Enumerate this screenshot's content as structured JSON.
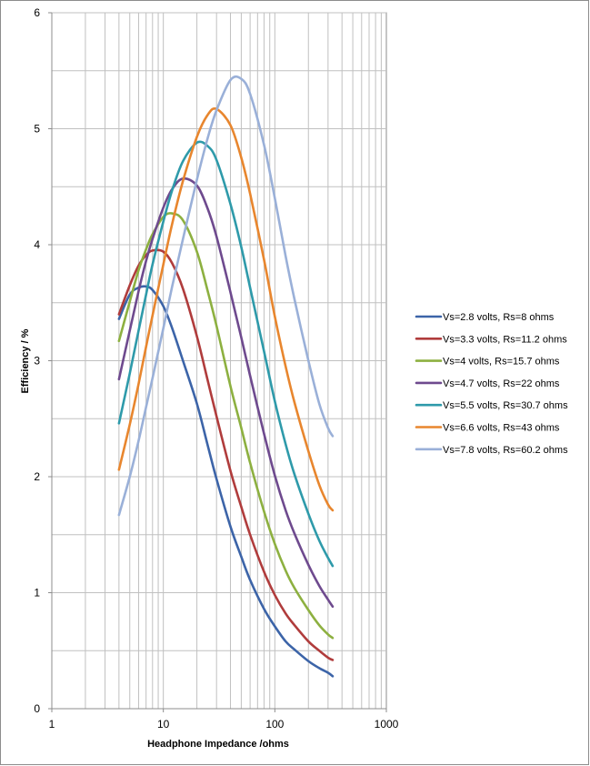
{
  "chart_data": {
    "type": "line",
    "title": "",
    "xlabel": "Headphone Impedance  /ohms",
    "ylabel": "Efficiency  / %",
    "xscale": "log",
    "xlim": [
      1,
      1000
    ],
    "ylim": [
      0,
      6
    ],
    "yticks": [
      "0",
      "1",
      "2",
      "3",
      "4",
      "5",
      "6"
    ],
    "xticks": [
      "1",
      "10",
      "100",
      "1000"
    ],
    "grid": true,
    "legend_position": "right",
    "x": [
      4,
      5,
      6,
      7,
      8,
      10,
      12,
      15,
      20,
      25,
      30,
      40,
      50,
      60,
      80,
      100,
      125,
      150,
      200,
      250,
      300,
      330
    ],
    "series": [
      {
        "name": "Vs=2.8 volts, Rs=8 ohms",
        "color": "#3c64a8",
        "values": [
          3.36,
          3.57,
          3.63,
          3.64,
          3.61,
          3.47,
          3.28,
          3.0,
          2.63,
          2.27,
          1.98,
          1.57,
          1.31,
          1.11,
          0.86,
          0.71,
          0.58,
          0.51,
          0.41,
          0.35,
          0.31,
          0.28
        ]
      },
      {
        "name": "Vs=3.3 volts, Rs=11.2 ohms",
        "color": "#b03c3c",
        "values": [
          3.4,
          3.65,
          3.82,
          3.91,
          3.95,
          3.94,
          3.84,
          3.62,
          3.21,
          2.83,
          2.52,
          2.05,
          1.74,
          1.5,
          1.18,
          0.98,
          0.82,
          0.72,
          0.58,
          0.5,
          0.44,
          0.42
        ]
      },
      {
        "name": "Vs=4 volts, Rs=15.7 ohms",
        "color": "#8db040",
        "values": [
          3.17,
          3.51,
          3.78,
          3.96,
          4.09,
          4.24,
          4.27,
          4.21,
          3.94,
          3.6,
          3.3,
          2.78,
          2.42,
          2.12,
          1.7,
          1.42,
          1.19,
          1.04,
          0.85,
          0.72,
          0.64,
          0.61
        ]
      },
      {
        "name": "Vs=4.7 volts, Rs=22 ohms",
        "color": "#6e4a8e",
        "values": [
          2.84,
          3.26,
          3.6,
          3.86,
          4.05,
          4.32,
          4.48,
          4.57,
          4.51,
          4.31,
          4.07,
          3.59,
          3.2,
          2.87,
          2.37,
          2.01,
          1.71,
          1.51,
          1.24,
          1.06,
          0.94,
          0.88
        ]
      },
      {
        "name": "Vs=5.5 volts, Rs=30.7 ohms",
        "color": "#2e9aaa",
        "values": [
          2.46,
          2.89,
          3.26,
          3.57,
          3.83,
          4.2,
          4.47,
          4.72,
          4.88,
          4.85,
          4.73,
          4.35,
          3.98,
          3.63,
          3.08,
          2.65,
          2.28,
          2.02,
          1.68,
          1.45,
          1.3,
          1.23
        ]
      },
      {
        "name": "Vs=6.6 volts, Rs=43 ohms",
        "color": "#e8862e",
        "values": [
          2.06,
          2.45,
          2.8,
          3.12,
          3.39,
          3.83,
          4.18,
          4.55,
          4.93,
          5.12,
          5.17,
          5.03,
          4.75,
          4.44,
          3.87,
          3.38,
          2.95,
          2.64,
          2.22,
          1.93,
          1.76,
          1.71
        ]
      },
      {
        "name": "Vs=7.8 volts, Rs=60.2 ohms",
        "color": "#9ab0d8",
        "values": [
          1.67,
          2.0,
          2.31,
          2.6,
          2.85,
          3.28,
          3.64,
          4.05,
          4.56,
          4.92,
          5.16,
          5.42,
          5.43,
          5.3,
          4.86,
          4.4,
          3.9,
          3.53,
          3.0,
          2.63,
          2.42,
          2.35
        ]
      }
    ]
  }
}
